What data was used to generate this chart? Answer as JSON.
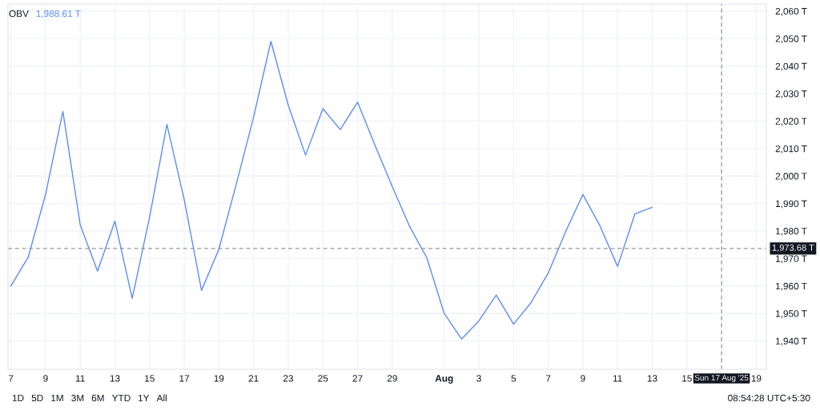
{
  "chart_data": {
    "type": "line",
    "title": "OBV",
    "subtitle": "1,988.61 T",
    "x": [
      "2025-07-07",
      "2025-07-08",
      "2025-07-09",
      "2025-07-10",
      "2025-07-11",
      "2025-07-12",
      "2025-07-13",
      "2025-07-14",
      "2025-07-15",
      "2025-07-16",
      "2025-07-17",
      "2025-07-18",
      "2025-07-19",
      "2025-07-20",
      "2025-07-21",
      "2025-07-22",
      "2025-07-23",
      "2025-07-24",
      "2025-07-25",
      "2025-07-26",
      "2025-07-27",
      "2025-07-28",
      "2025-07-29",
      "2025-07-30",
      "2025-07-31",
      "2025-08-01",
      "2025-08-02",
      "2025-08-03",
      "2025-08-04",
      "2025-08-05",
      "2025-08-06",
      "2025-08-07",
      "2025-08-08",
      "2025-08-09",
      "2025-08-10",
      "2025-08-11",
      "2025-08-12",
      "2025-08-13"
    ],
    "series": [
      {
        "color": "#5b8def",
        "values": [
          1960.0,
          1970.5,
          1993.3,
          2023.5,
          1982.2,
          1965.4,
          1983.6,
          1955.5,
          1985.0,
          2018.8,
          1991.4,
          1958.4,
          1973.4,
          1997.0,
          2021.4,
          2049.0,
          2025.8,
          2007.6,
          2024.5,
          2016.9,
          2026.9,
          2011.3,
          1996.2,
          1981.7,
          1970.2,
          1950.0,
          1940.7,
          1947.3,
          1956.7,
          1946.1,
          1953.9,
          1964.7,
          1979.7,
          1993.3,
          1981.7,
          1967.1,
          1986.2,
          1988.61
        ]
      }
    ],
    "xlim": [
      "2025-07-06T20:00",
      "2025-08-19T14:00"
    ],
    "xticks": [
      {
        "value": "2025-07-07",
        "label": "7"
      },
      {
        "value": "2025-07-09",
        "label": "9"
      },
      {
        "value": "2025-07-11",
        "label": "11"
      },
      {
        "value": "2025-07-13",
        "label": "13"
      },
      {
        "value": "2025-07-15",
        "label": "15"
      },
      {
        "value": "2025-07-17",
        "label": "17"
      },
      {
        "value": "2025-07-19",
        "label": "19"
      },
      {
        "value": "2025-07-21",
        "label": "21"
      },
      {
        "value": "2025-07-23",
        "label": "23"
      },
      {
        "value": "2025-07-25",
        "label": "25"
      },
      {
        "value": "2025-07-27",
        "label": "27"
      },
      {
        "value": "2025-07-29",
        "label": "29"
      },
      {
        "value": "2025-08-01",
        "label": "Aug"
      },
      {
        "value": "2025-08-03",
        "label": "3"
      },
      {
        "value": "2025-08-05",
        "label": "5"
      },
      {
        "value": "2025-08-07",
        "label": "7"
      },
      {
        "value": "2025-08-09",
        "label": "9"
      },
      {
        "value": "2025-08-11",
        "label": "11"
      },
      {
        "value": "2025-08-13",
        "label": "13"
      },
      {
        "value": "2025-08-15",
        "label": "15"
      },
      {
        "value": "2025-08-17",
        "label": null
      },
      {
        "value": "2025-08-19",
        "label": "19"
      }
    ],
    "ylim": [
      1929.7,
      2062.6
    ],
    "yticks": [
      {
        "value": 1940,
        "label": "1,940 T"
      },
      {
        "value": 1950,
        "label": "1,950 T"
      },
      {
        "value": 1960,
        "label": "1,960 T"
      },
      {
        "value": 1970,
        "label": "1,970 T"
      },
      {
        "value": 1980,
        "label": "1,980 T"
      },
      {
        "value": 1990,
        "label": "1,990 T"
      },
      {
        "value": 2000,
        "label": "2,000 T"
      },
      {
        "value": 2010,
        "label": "2,010 T"
      },
      {
        "value": 2020,
        "label": "2,020 T"
      },
      {
        "value": 2030,
        "label": "2,030 T"
      },
      {
        "value": 2040,
        "label": "2,040 T"
      },
      {
        "value": 2050,
        "label": "2,050 T"
      },
      {
        "value": 2060,
        "label": "2,060 T"
      }
    ],
    "grid": true,
    "line_style": "solid",
    "ref_lines": [
      {
        "axis": "y",
        "value": 1973.68,
        "label": "1,973.68 T",
        "color": "#9598a1",
        "line_style": "dashed"
      },
      {
        "axis": "x",
        "value": "2025-08-17",
        "label": "Sun 17 Aug '25",
        "color": "#9598a1",
        "line_style": "dashed"
      }
    ],
    "annotations": [
      "1D",
      "5D",
      "1M",
      "3M",
      "6M",
      "YTD",
      "1Y",
      "All",
      "08:54:28 UTC+5:30"
    ]
  }
}
